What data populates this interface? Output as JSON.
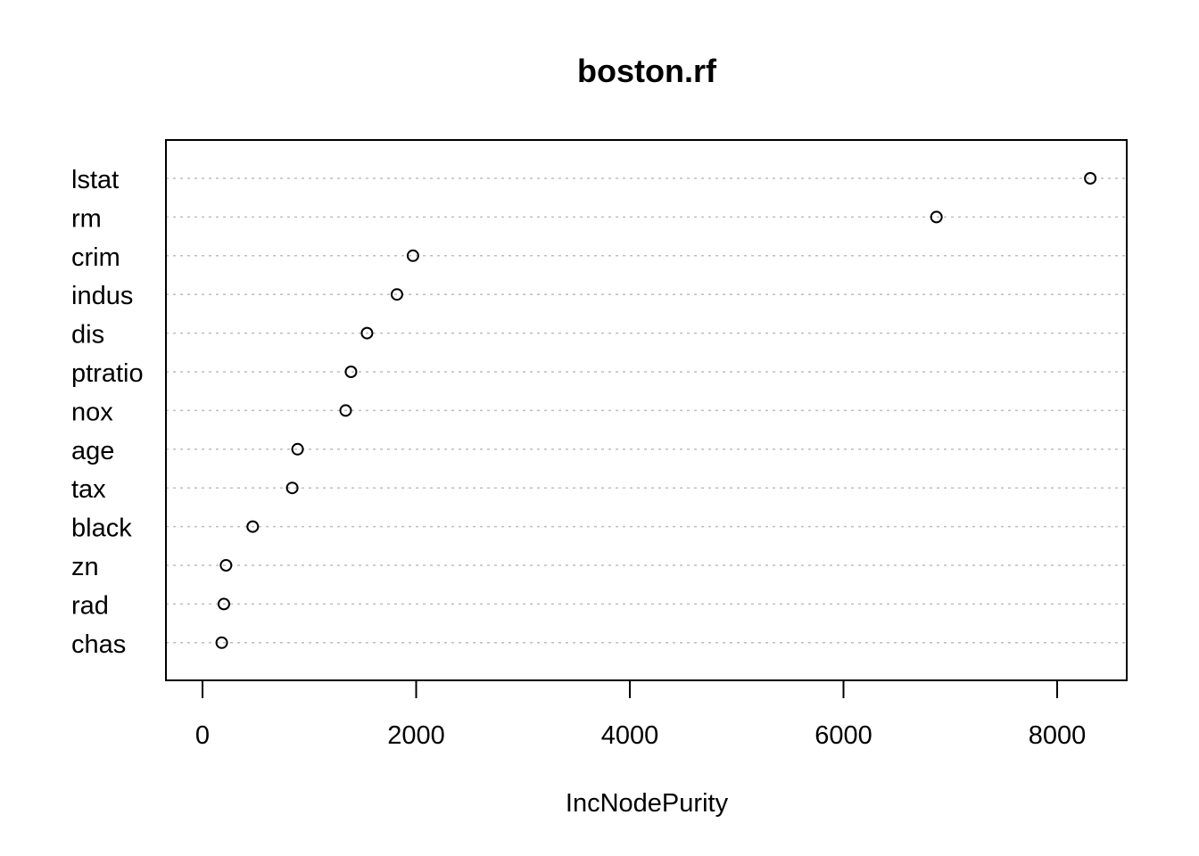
{
  "chart_data": {
    "type": "scatter",
    "title": "boston.rf",
    "xlabel": "IncNodePurity",
    "ylabel": "",
    "xlim": [
      -170,
      8500
    ],
    "xticks": [
      0,
      2000,
      4000,
      6000,
      8000
    ],
    "grid": true,
    "legend": "none",
    "categories": [
      "lstat",
      "rm",
      "crim",
      "indus",
      "dis",
      "ptratio",
      "nox",
      "age",
      "tax",
      "black",
      "zn",
      "rad",
      "chas"
    ],
    "values": [
      8310,
      6870,
      1970,
      1820,
      1540,
      1390,
      1340,
      890,
      840,
      470,
      220,
      200,
      180
    ]
  }
}
